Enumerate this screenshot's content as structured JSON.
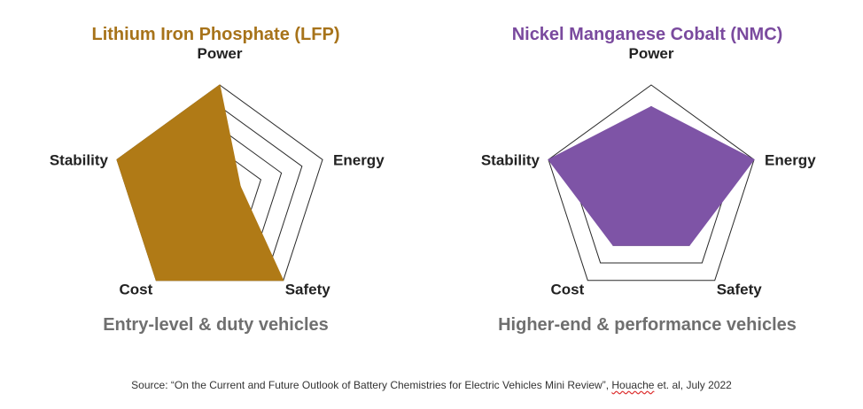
{
  "chart_data": [
    {
      "type": "radar",
      "title": "Lithium Iron Phosphate (LFP)",
      "title_color": "#a7731a",
      "fill_color": "#b07a16",
      "subtitle": "Entry-level & duty vehicles",
      "axes": [
        "Power",
        "Energy",
        "Safety",
        "Cost",
        "Stability"
      ],
      "levels": 5,
      "range": [
        0,
        5
      ],
      "series": [
        {
          "values": [
            5,
            1,
            5,
            5,
            5
          ]
        }
      ]
    },
    {
      "type": "radar",
      "title": "Nickel Manganese Cobalt (NMC)",
      "title_color": "#7a4a9e",
      "fill_color": "#7e54a6",
      "subtitle": "Higher-end & performance vehicles",
      "axes": [
        "Power",
        "Energy",
        "Safety",
        "Cost",
        "Stability"
      ],
      "levels": 5,
      "range": [
        0,
        5
      ],
      "series": [
        {
          "values": [
            4,
            5,
            3,
            3,
            5
          ]
        }
      ]
    }
  ],
  "source": {
    "prefix": "Source: “On the Current and Future Outlook of Battery Chemistries for Electric Vehicles Mini Review”, ",
    "author": "Houache",
    "suffix": " et. al, July 2022"
  }
}
